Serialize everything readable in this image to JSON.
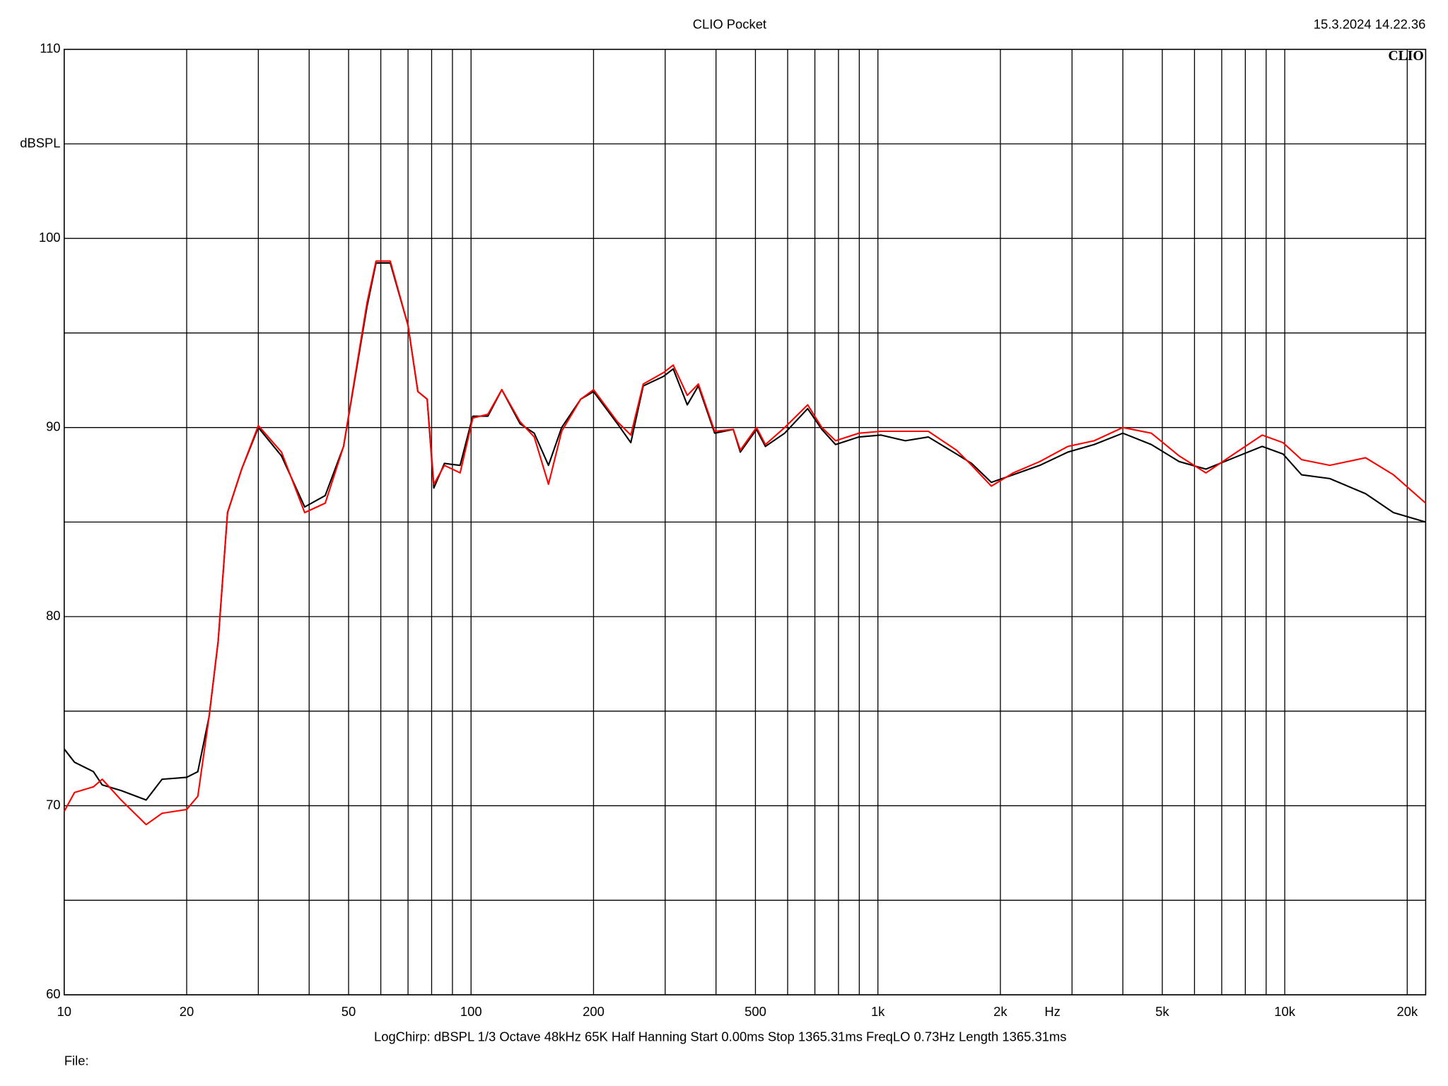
{
  "chart_data": {
    "type": "line",
    "title": "CLIO Pocket",
    "annotations": {
      "timestamp": "15.3.2024 14.22.36",
      "logo": "CLIO",
      "settings": "LogChirp:  dBSPL   1/3 Octave   48kHz   65K   Half Hanning   Start 0.00ms   Stop 1365.31ms   FreqLO 0.73Hz   Length 1365.31ms",
      "file": "File:"
    },
    "x_label": "Hz",
    "y_label": "dBSPL",
    "x_scale": "log",
    "grid": true,
    "xlim": [
      10,
      22200
    ],
    "ylim": [
      60,
      110
    ],
    "xticks": [
      10,
      20,
      50,
      100,
      200,
      500,
      {
        "value": 1000,
        "label": "1k"
      },
      {
        "value": 2000,
        "label": "2k"
      },
      {
        "value": 5000,
        "label": "5k"
      },
      {
        "value": 10000,
        "label": "10k"
      },
      {
        "value": 20000,
        "label": "20k"
      }
    ],
    "x_minor_ticks": [
      30,
      40,
      60,
      70,
      80,
      90,
      300,
      400,
      600,
      700,
      800,
      900,
      3000,
      4000,
      6000,
      7000,
      8000,
      9000
    ],
    "yticks": [
      60,
      70,
      80,
      90,
      100,
      110
    ],
    "y_minor_ticks": [
      65,
      75,
      85,
      95,
      105
    ],
    "x": [
      10,
      10.6,
      11.8,
      12.4,
      13.8,
      15.9,
      17.4,
      20,
      21.3,
      22.7,
      23.9,
      25.2,
      27.3,
      30,
      34.2,
      39,
      43.8,
      48.6,
      55.5,
      58.4,
      63.3,
      70,
      74,
      78,
      81,
      86,
      94,
      101,
      110,
      119,
      132,
      143,
      155,
      167,
      186,
      200,
      229,
      247,
      265,
      297,
      314,
      340,
      362,
      397,
      441,
      459,
      503,
      529,
      590,
      672,
      728,
      787,
      898,
      1018,
      1168,
      1330,
      1560,
      1700,
      1900,
      2150,
      2500,
      2930,
      3400,
      4000,
      4700,
      5500,
      6400,
      7500,
      8800,
      9900,
      11000,
      12900,
      15800,
      18500,
      22200
    ],
    "series": [
      {
        "name": "Black",
        "color": "#000000",
        "values": [
          73.0,
          72.3,
          71.8,
          71.1,
          70.8,
          70.3,
          71.4,
          71.5,
          71.8,
          74.7,
          78.7,
          85.5,
          87.8,
          90.0,
          88.5,
          85.8,
          86.4,
          89.0,
          96.4,
          98.7,
          98.7,
          95.4,
          91.9,
          91.5,
          86.8,
          88.1,
          88.0,
          90.6,
          90.6,
          92.0,
          90.2,
          89.7,
          88.0,
          90.0,
          91.5,
          91.9,
          90.2,
          89.2,
          92.2,
          92.7,
          93.1,
          91.2,
          92.2,
          89.7,
          89.9,
          88.7,
          89.9,
          89.0,
          89.7,
          91.0,
          89.9,
          89.1,
          89.5,
          89.6,
          89.3,
          89.5,
          88.6,
          88.1,
          87.1,
          87.5,
          88.0,
          88.7,
          89.1,
          89.7,
          89.1,
          88.2,
          87.8,
          88.4,
          89.0,
          88.6,
          87.5,
          87.3,
          86.5,
          85.5,
          85.0
        ]
      },
      {
        "name": "Red",
        "color": "#ff0000",
        "values": [
          69.7,
          70.7,
          71.0,
          71.4,
          70.3,
          69.0,
          69.6,
          69.8,
          70.5,
          74.7,
          78.7,
          85.5,
          87.8,
          90.1,
          88.7,
          85.5,
          86.0,
          89.0,
          96.6,
          98.8,
          98.8,
          95.4,
          91.9,
          91.5,
          87.0,
          88.0,
          87.6,
          90.5,
          90.7,
          92.0,
          90.3,
          89.5,
          87.0,
          89.8,
          91.5,
          92.0,
          90.3,
          89.6,
          92.3,
          92.9,
          93.3,
          91.7,
          92.3,
          89.8,
          89.9,
          88.8,
          90.0,
          89.1,
          90.0,
          91.2,
          90.0,
          89.3,
          89.7,
          89.8,
          89.8,
          89.8,
          88.8,
          88.0,
          86.9,
          87.6,
          88.2,
          89.0,
          89.3,
          90.0,
          89.7,
          88.5,
          87.6,
          88.6,
          89.6,
          89.2,
          88.3,
          88.0,
          88.4,
          87.5,
          86.0
        ]
      }
    ]
  }
}
